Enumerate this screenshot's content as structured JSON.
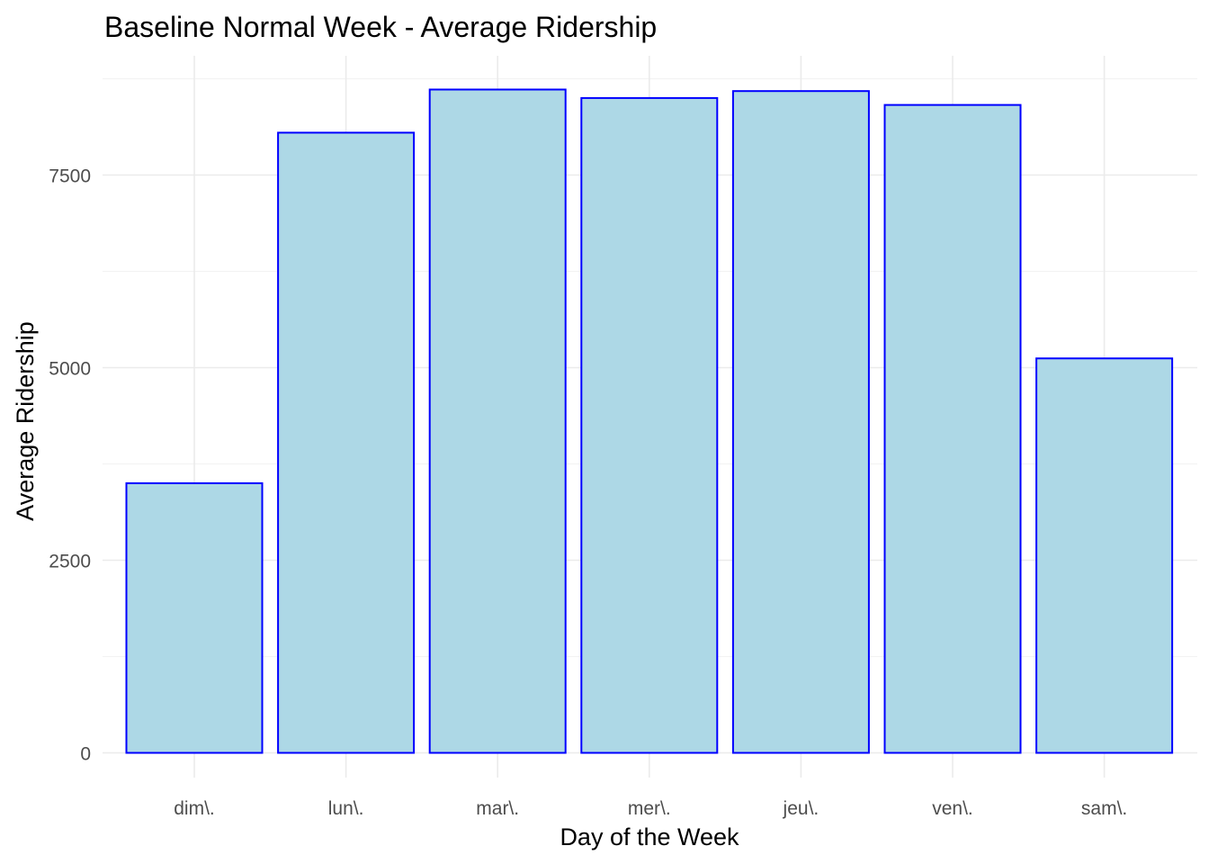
{
  "chart_data": {
    "type": "bar",
    "title": "Baseline Normal Week - Average Ridership",
    "xlabel": "Day of the Week",
    "ylabel": "Average Ridership",
    "categories": [
      "dim\\.",
      "lun\\.",
      "mar\\.",
      "mer\\.",
      "jeu\\.",
      "ven\\.",
      "sam\\."
    ],
    "values": [
      3500,
      8050,
      8610,
      8500,
      8590,
      8410,
      5120
    ],
    "yticks": [
      0,
      2500,
      5000,
      7500
    ],
    "ytick_labels": [
      "0",
      "2500",
      "5000",
      "7500"
    ],
    "ylim": [
      -350,
      9000
    ],
    "grid": true,
    "legend": "none",
    "colors": {
      "bar_fill": "#add8e6",
      "bar_stroke": "#0000ff",
      "grid_major": "#ebebeb",
      "grid_minor": "#f3f3f3",
      "tick_text": "#4d4d4d",
      "title_text": "#000000"
    }
  }
}
